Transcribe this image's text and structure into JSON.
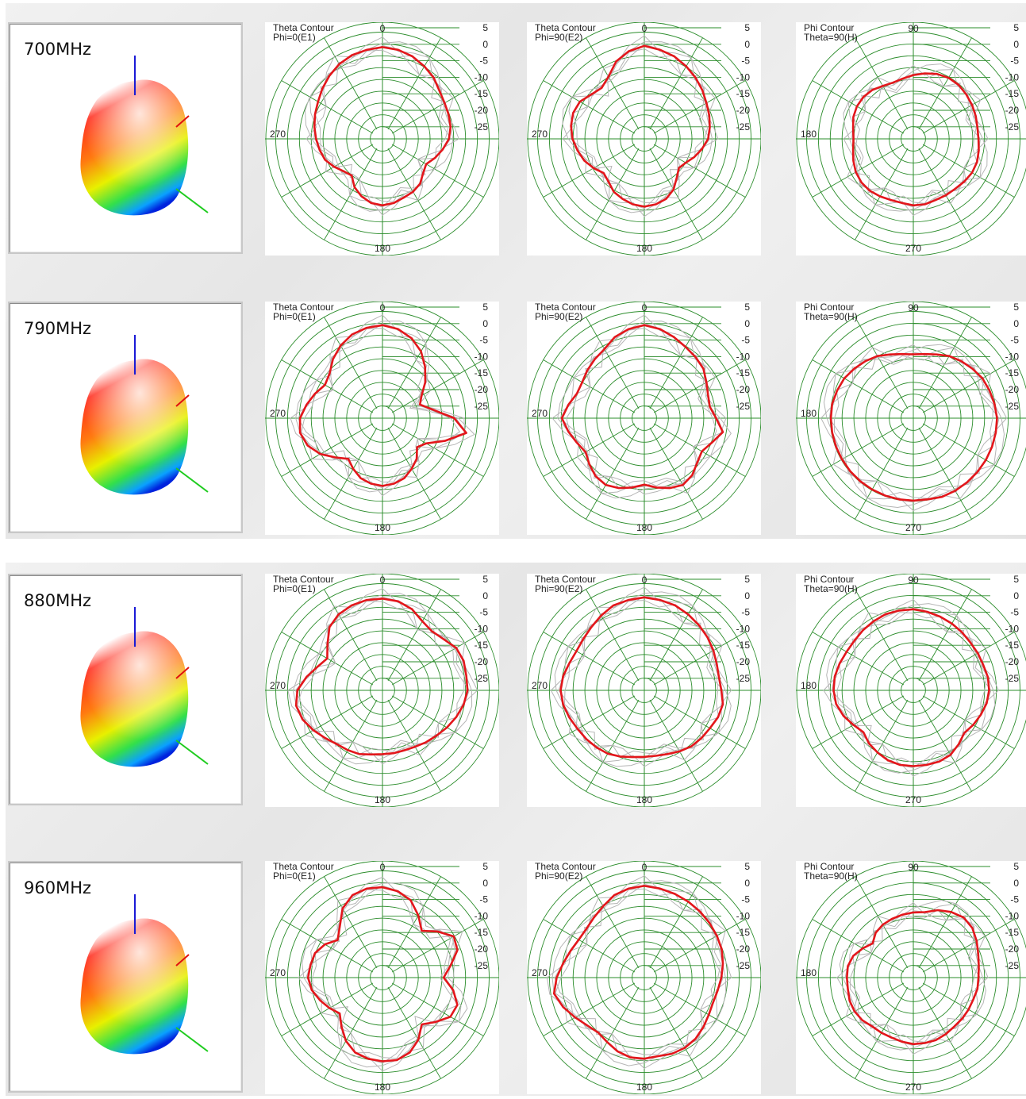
{
  "chart_data": {
    "type": "polar",
    "axis_labels": {
      "theta": {
        "top": "0",
        "side": "270",
        "bottom": "180"
      },
      "phi": {
        "top": "90",
        "side": "180",
        "bottom": "270"
      }
    },
    "radial_ticks": [
      "5",
      "0",
      "-5",
      "-10",
      "-15",
      "-20",
      "-25"
    ],
    "rlim": [
      -35,
      5
    ],
    "grid": true,
    "colors": {
      "grid": "#2a8c2a",
      "trace": "#e3161b",
      "reference": "#b5b5b5"
    },
    "rows": [
      {
        "freq": "700MHz",
        "plots": [
          {
            "title": "Theta Contour",
            "subtitle": "Phi=0(E1)",
            "kind": "theta",
            "values": [
              -0.5,
              -1,
              -2,
              -3.5,
              -5,
              -7,
              -8,
              -8.5,
              -9,
              -10,
              -12,
              -14,
              -16,
              -15,
              -13,
              -12,
              -11.5,
              -10.5,
              -10,
              -10.5,
              -12,
              -14,
              -17,
              -16,
              -14,
              -12,
              -11,
              -10,
              -9,
              -8,
              -7,
              -5.5,
              -4,
              -2.5,
              -1.5,
              -1
            ]
          },
          {
            "title": "Theta Contour",
            "subtitle": "Phi=90(E2)",
            "kind": "theta",
            "values": [
              0,
              -1,
              -2,
              -3.5,
              -5,
              -6.5,
              -8,
              -9,
              -10,
              -11,
              -13,
              -15,
              -17,
              -18,
              -16,
              -13,
              -11,
              -10,
              -9.5,
              -10,
              -11,
              -12,
              -14,
              -15,
              -13,
              -11,
              -9.5,
              -8,
              -7,
              -6.5,
              -7,
              -9,
              -10,
              -8,
              -4,
              -1.5
            ]
          },
          {
            "title": "Phi Contour",
            "subtitle": "Theta=90(H)",
            "kind": "phi",
            "values": [
              -10,
              -10.5,
              -10.5,
              -10,
              -9.5,
              -9.5,
              -10,
              -11,
              -12,
              -12.5,
              -12,
              -11,
              -10.5,
              -10.5,
              -11,
              -12,
              -12.5,
              -12,
              -11,
              -10,
              -9,
              -8.5,
              -8.5,
              -9,
              -9.5,
              -10,
              -10.5,
              -10.5,
              -10,
              -9.5,
              -9.5,
              -10,
              -10.5,
              -10.5,
              -10.5,
              -10
            ]
          }
        ]
      },
      {
        "freq": "790MHz",
        "plots": [
          {
            "title": "Theta Contour",
            "subtitle": "Phi=0(E1)",
            "kind": "theta",
            "values": [
              0,
              -1,
              -3,
              -6,
              -10,
              -14,
              -18,
              -20,
              -16,
              -8,
              -3,
              -10,
              -16,
              -18,
              -15,
              -13,
              -11,
              -10,
              -9.5,
              -10,
              -11,
              -13,
              -15,
              -12,
              -8,
              -5,
              -3.5,
              -4,
              -6,
              -8,
              -10,
              -9,
              -6,
              -3.5,
              -1.5,
              -0.5
            ]
          },
          {
            "title": "Theta Contour",
            "subtitle": "Phi=90(E2)",
            "kind": "theta",
            "values": [
              0,
              -1,
              -2.5,
              -4,
              -5,
              -6,
              -8,
              -9.5,
              -10,
              -8,
              -5,
              -8,
              -10,
              -9,
              -7,
              -6,
              -7,
              -8.5,
              -10,
              -8.5,
              -7,
              -6,
              -6.5,
              -8,
              -9.5,
              -8,
              -6,
              -4,
              -6,
              -8,
              -8,
              -7,
              -6,
              -5,
              -2.5,
              -1
            ]
          },
          {
            "title": "Phi Contour",
            "subtitle": "Theta=90(H)",
            "kind": "phi",
            "values": [
              -4,
              -4,
              -4,
              -4,
              -4,
              -4,
              -4,
              -4,
              -4,
              -4,
              -4,
              -4.5,
              -5,
              -6,
              -7,
              -8,
              -9.5,
              -10.5,
              -11,
              -10.5,
              -9.5,
              -8,
              -7,
              -6,
              -5,
              -4.5,
              -4,
              -3.5,
              -3.5,
              -3.5,
              -3.5,
              -3.5,
              -3.5,
              -3.5,
              -3.5,
              -4
            ]
          }
        ]
      },
      {
        "freq": "880MHz",
        "plots": [
          {
            "title": "Theta Contour",
            "subtitle": "Phi=0(E1)",
            "kind": "theta",
            "values": [
              -0.5,
              -1,
              -2.5,
              -5,
              -6,
              -5,
              -3,
              -2.5,
              -3,
              -3,
              -4,
              -5.5,
              -7,
              -8.5,
              -9.5,
              -10.5,
              -11,
              -11,
              -11,
              -10.5,
              -9.5,
              -9,
              -8.5,
              -7,
              -5,
              -3,
              -2,
              -3,
              -6,
              -9,
              -11,
              -8,
              -4,
              -2,
              -1,
              -0.5
            ]
          },
          {
            "title": "Theta Contour",
            "subtitle": "Phi=90(E2)",
            "kind": "theta",
            "values": [
              0,
              -0.5,
              -1,
              -2,
              -3,
              -4,
              -5,
              -6,
              -6.5,
              -6,
              -5,
              -5.5,
              -6.5,
              -7,
              -7.5,
              -8.5,
              -9.5,
              -10,
              -10,
              -9.5,
              -8.5,
              -7.5,
              -7,
              -6.5,
              -6,
              -5,
              -4,
              -3.5,
              -4,
              -5,
              -5.5,
              -5,
              -4,
              -2.5,
              -1,
              -0.5
            ]
          },
          {
            "title": "Phi Contour",
            "subtitle": "Theta=90(H)",
            "kind": "phi",
            "values": [
              -6.5,
              -6.5,
              -7,
              -8,
              -9,
              -10.5,
              -9,
              -7,
              -5.5,
              -5,
              -5,
              -5.5,
              -6,
              -6,
              -5.5,
              -5,
              -4.5,
              -4.5,
              -4.5,
              -5,
              -5.5,
              -6,
              -6.5,
              -7,
              -7,
              -7,
              -6.5,
              -6.5,
              -7,
              -8,
              -9,
              -10,
              -8.5,
              -7,
              -6.5,
              -6.5
            ]
          }
        ]
      },
      {
        "freq": "960MHz",
        "plots": [
          {
            "title": "Theta Contour",
            "subtitle": "Phi=0(E1)",
            "kind": "theta",
            "values": [
              -1,
              -2,
              -4,
              -8,
              -12,
              -8,
              -4,
              -5,
              -9,
              -12,
              -8,
              -5,
              -5.5,
              -9,
              -12,
              -8,
              -5,
              -3.5,
              -3.5,
              -4,
              -5,
              -7.5,
              -11,
              -14,
              -12,
              -10,
              -8,
              -7,
              -7.5,
              -8,
              -10,
              -13,
              -10,
              -5,
              -2,
              -1
            ]
          },
          {
            "title": "Theta Contour",
            "subtitle": "Phi=90(E2)",
            "kind": "theta",
            "values": [
              -0.5,
              -1,
              -1.5,
              -2,
              -2.5,
              -3,
              -3.5,
              -4,
              -5,
              -6,
              -7,
              -7.5,
              -7,
              -6,
              -5,
              -4.5,
              -4.5,
              -5,
              -4.5,
              -4.5,
              -5.5,
              -7,
              -8,
              -7,
              -5,
              -2.5,
              -0.5,
              -2,
              -4,
              -5.5,
              -6.5,
              -6.5,
              -5.5,
              -4,
              -2,
              -1
            ]
          },
          {
            "title": "Phi Contour",
            "subtitle": "Theta=90(H)",
            "kind": "phi",
            "values": [
              -10,
              -10.5,
              -11,
              -11,
              -11,
              -10,
              -9.5,
              -9.5,
              -10,
              -10,
              -10,
              -11,
              -13,
              -15,
              -13,
              -12,
              -11.5,
              -11,
              -10.5,
              -10,
              -8,
              -6.5,
              -5.5,
              -6,
              -7.5,
              -9,
              -10,
              -10.5,
              -10.5,
              -11,
              -11,
              -11,
              -11,
              -10.5,
              -10,
              -10
            ]
          }
        ]
      }
    ]
  }
}
